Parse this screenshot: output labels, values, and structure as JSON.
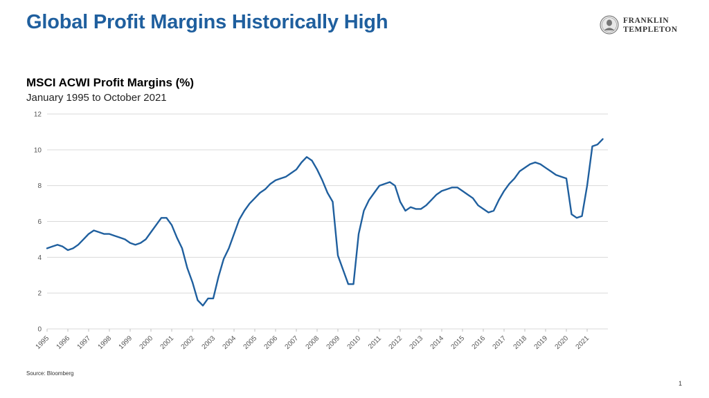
{
  "slide": {
    "title": "Global Profit Margins Historically High",
    "source": "Source: Bloomberg",
    "page_number": "1"
  },
  "logo": {
    "line1": "FRANKLIN",
    "line2": "TEMPLETON",
    "seal_icon": "franklin-portrait-seal-icon"
  },
  "colors": {
    "title": "#1f5f9e",
    "series": "#1f5f9e",
    "grid": "#d9d9d9"
  },
  "chart_data": {
    "type": "line",
    "title": "MSCI ACWI Profit Margins (%)",
    "subtitle": "January 1995 to October 2021",
    "xlabel": "",
    "ylabel": "",
    "ylim": [
      0,
      12
    ],
    "yticks": [
      0,
      2,
      4,
      6,
      8,
      10,
      12
    ],
    "xticks": [
      "1995",
      "1996",
      "1997",
      "1998",
      "1999",
      "2000",
      "2001",
      "2002",
      "2003",
      "2004",
      "2005",
      "2006",
      "2007",
      "2008",
      "2009",
      "2010",
      "2011",
      "2012",
      "2013",
      "2014",
      "2015",
      "2016",
      "2017",
      "2018",
      "2019",
      "2020",
      "2021"
    ],
    "grid": "horizontal",
    "legend": "none",
    "series": [
      {
        "x": [
          "1995-01",
          "1995-04",
          "1995-07",
          "1995-10",
          "1996-01",
          "1996-04",
          "1996-07",
          "1996-10",
          "1997-01",
          "1997-04",
          "1997-07",
          "1997-10",
          "1998-01",
          "1998-04",
          "1998-07",
          "1998-10",
          "1999-01",
          "1999-04",
          "1999-07",
          "1999-10",
          "2000-01",
          "2000-04",
          "2000-07",
          "2000-10",
          "2001-01",
          "2001-04",
          "2001-07",
          "2001-10",
          "2002-01",
          "2002-04",
          "2002-07",
          "2002-10",
          "2003-01",
          "2003-04",
          "2003-07",
          "2003-10",
          "2004-01",
          "2004-04",
          "2004-07",
          "2004-10",
          "2005-01",
          "2005-04",
          "2005-07",
          "2005-10",
          "2006-01",
          "2006-04",
          "2006-07",
          "2006-10",
          "2007-01",
          "2007-04",
          "2007-07",
          "2007-10",
          "2008-01",
          "2008-04",
          "2008-07",
          "2008-10",
          "2009-01",
          "2009-04",
          "2009-07",
          "2009-10",
          "2010-01",
          "2010-04",
          "2010-07",
          "2010-10",
          "2011-01",
          "2011-04",
          "2011-07",
          "2011-10",
          "2012-01",
          "2012-04",
          "2012-07",
          "2012-10",
          "2013-01",
          "2013-04",
          "2013-07",
          "2013-10",
          "2014-01",
          "2014-04",
          "2014-07",
          "2014-10",
          "2015-01",
          "2015-04",
          "2015-07",
          "2015-10",
          "2016-01",
          "2016-04",
          "2016-07",
          "2016-10",
          "2017-01",
          "2017-04",
          "2017-07",
          "2017-10",
          "2018-01",
          "2018-04",
          "2018-07",
          "2018-10",
          "2019-01",
          "2019-04",
          "2019-07",
          "2019-10",
          "2020-01",
          "2020-04",
          "2020-07",
          "2020-10",
          "2021-01",
          "2021-04",
          "2021-07",
          "2021-10"
        ],
        "values": [
          4.5,
          4.6,
          4.7,
          4.6,
          4.4,
          4.5,
          4.7,
          5.0,
          5.3,
          5.5,
          5.4,
          5.3,
          5.3,
          5.2,
          5.1,
          5.0,
          4.8,
          4.7,
          4.8,
          5.0,
          5.4,
          5.8,
          6.2,
          6.2,
          5.8,
          5.1,
          4.5,
          3.4,
          2.6,
          1.6,
          1.3,
          1.7,
          1.7,
          2.9,
          3.9,
          4.5,
          5.3,
          6.1,
          6.6,
          7.0,
          7.3,
          7.6,
          7.8,
          8.1,
          8.3,
          8.4,
          8.5,
          8.7,
          8.9,
          9.3,
          9.6,
          9.4,
          8.9,
          8.3,
          7.6,
          7.1,
          4.1,
          3.3,
          2.5,
          2.5,
          5.3,
          6.6,
          7.2,
          7.6,
          8.0,
          8.1,
          8.2,
          8.0,
          7.1,
          6.6,
          6.8,
          6.7,
          6.7,
          6.9,
          7.2,
          7.5,
          7.7,
          7.8,
          7.9,
          7.9,
          7.7,
          7.5,
          7.3,
          6.9,
          6.7,
          6.5,
          6.6,
          7.2,
          7.7,
          8.1,
          8.4,
          8.8,
          9.0,
          9.2,
          9.3,
          9.2,
          9.0,
          8.8,
          8.6,
          8.5,
          8.4,
          6.4,
          6.2,
          6.3,
          8.0,
          10.2,
          10.3,
          10.6
        ]
      }
    ]
  }
}
